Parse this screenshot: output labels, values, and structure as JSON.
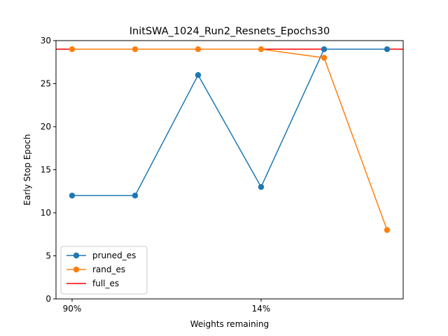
{
  "chart_data": {
    "type": "line",
    "title": "InitSWA_1024_Run2_Resnets_Epochs30",
    "xlabel": "Weights remaining",
    "ylabel": "Early Stop Epoch",
    "ylim": [
      0,
      30
    ],
    "yticks": [
      0,
      5,
      10,
      15,
      20,
      25,
      30
    ],
    "x": [
      0,
      1,
      2,
      3,
      4,
      5
    ],
    "xticks": [
      {
        "x": 0,
        "label": "90%"
      },
      {
        "x": 3,
        "label": "14%"
      }
    ],
    "series": [
      {
        "name": "pruned_es",
        "color": "#1f77b4",
        "values": [
          12,
          12,
          26,
          13,
          29,
          29
        ]
      },
      {
        "name": "rand_es",
        "color": "#ff7f0e",
        "values": [
          29,
          29,
          29,
          29,
          28,
          8
        ]
      }
    ],
    "hlines": [
      {
        "name": "full_es",
        "color": "#ff0000",
        "value": 29
      }
    ],
    "legend_loc": "lower-left",
    "grid": false
  }
}
